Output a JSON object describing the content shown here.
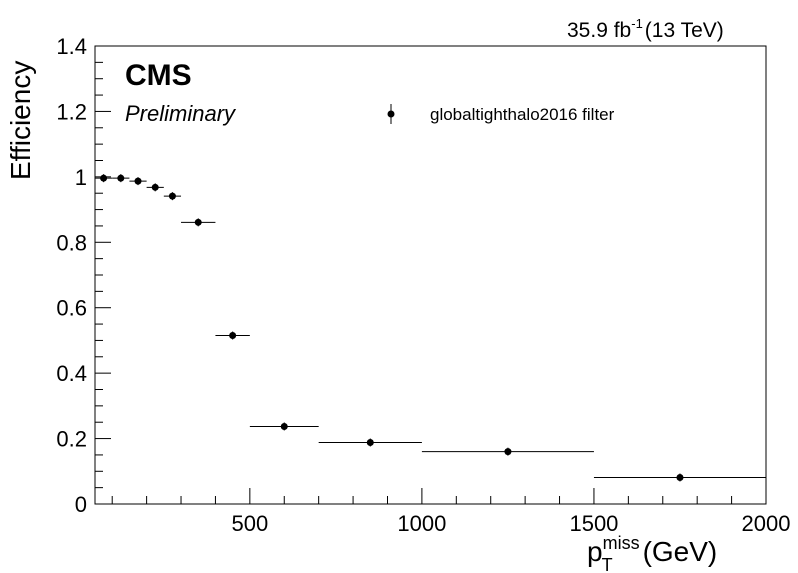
{
  "chart_data": {
    "type": "scatter",
    "title": "",
    "lumi_label": "35.9 fb",
    "lumi_exp": "-1",
    "energy_label": "(13 TeV)",
    "experiment": "CMS",
    "status": "Preliminary",
    "xlabel_main": "p",
    "xlabel_sub": "T",
    "xlabel_sup": "miss",
    "xlabel_unit": "(GeV)",
    "ylabel": "Efficiency",
    "xlim": [
      50,
      2000
    ],
    "ylim": [
      0,
      1.4
    ],
    "xticks": [
      500,
      1000,
      1500,
      2000
    ],
    "xtick_labels": [
      "500",
      "1000",
      "1500",
      "2000"
    ],
    "yticks": [
      0,
      0.2,
      0.4,
      0.6,
      0.8,
      1,
      1.2,
      1.4
    ],
    "ytick_labels": [
      "0",
      "0.2",
      "0.4",
      "0.6",
      "0.8",
      "1",
      "1.2",
      "1.4"
    ],
    "grid": false,
    "legend": {
      "position": "top-right",
      "entries": [
        "globaltighthalo2016 filter"
      ]
    },
    "series": [
      {
        "name": "globaltighthalo2016 filter",
        "color": "#000000",
        "bins": [
          [
            50,
            100
          ],
          [
            100,
            150
          ],
          [
            150,
            200
          ],
          [
            200,
            250
          ],
          [
            250,
            300
          ],
          [
            300,
            400
          ],
          [
            400,
            500
          ],
          [
            500,
            700
          ],
          [
            700,
            1000
          ],
          [
            1000,
            1500
          ],
          [
            1500,
            2000
          ]
        ],
        "x": [
          75,
          125,
          175,
          225,
          275,
          350,
          450,
          600,
          850,
          1250,
          1750
        ],
        "y": [
          0.996,
          0.996,
          0.987,
          0.968,
          0.941,
          0.861,
          0.515,
          0.237,
          0.188,
          0.16,
          0.081
        ]
      }
    ]
  }
}
